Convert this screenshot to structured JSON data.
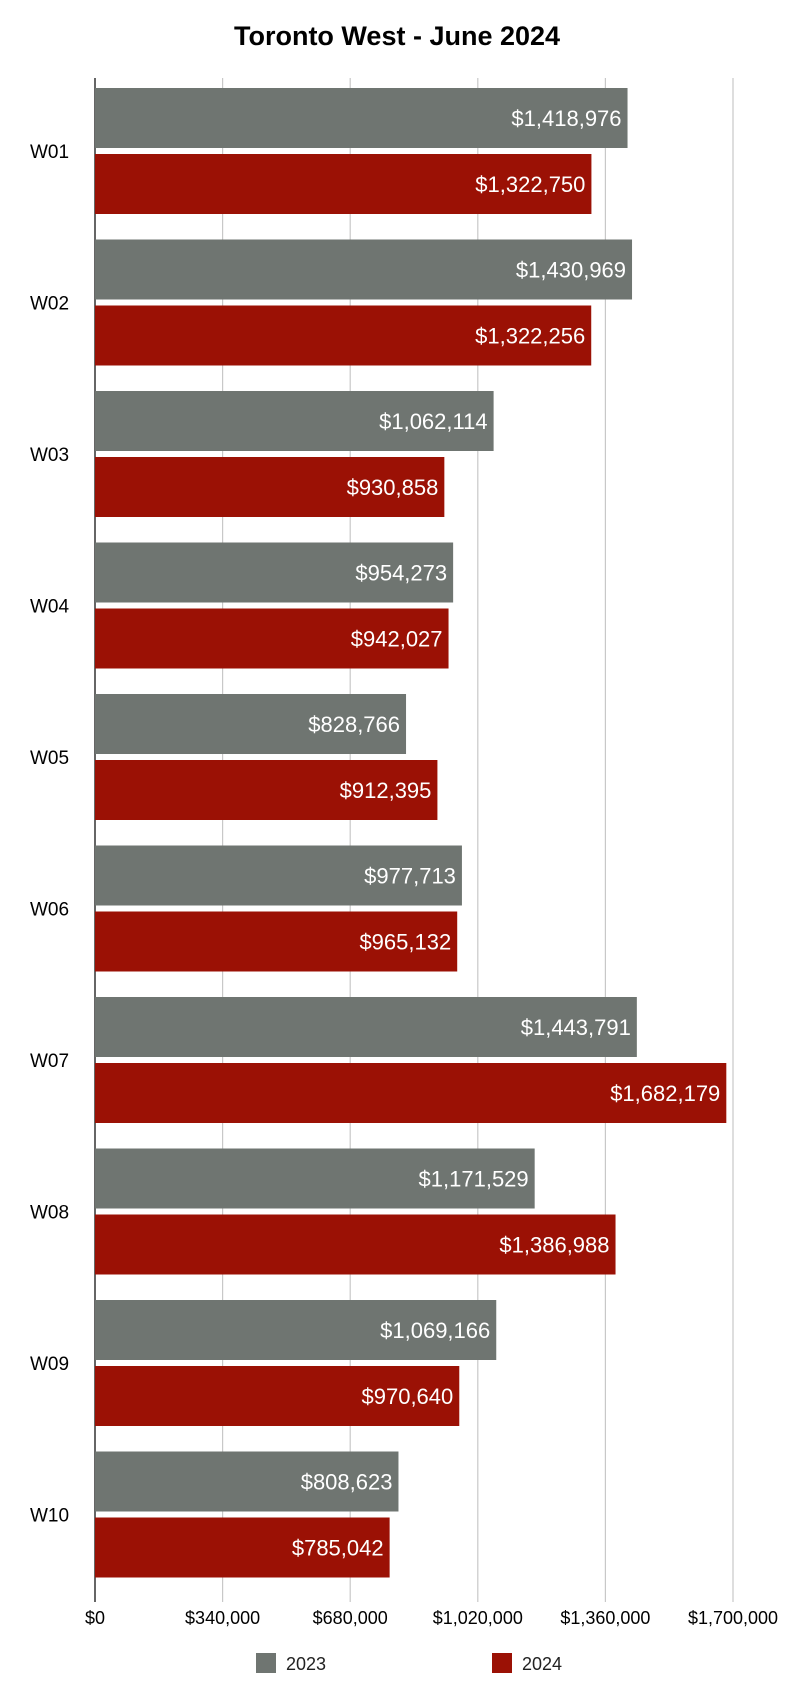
{
  "colors": {
    "series_2023": "#6f7571",
    "series_2024": "#9b1105",
    "grid": "#c8c8c8",
    "axis": "#333333"
  },
  "chart_data": {
    "type": "bar",
    "orientation": "horizontal",
    "title": "Toronto West - June 2024",
    "xlabel": "",
    "ylabel": "",
    "categories": [
      "W01",
      "W02",
      "W03",
      "W04",
      "W05",
      "W06",
      "W07",
      "W08",
      "W09",
      "W10"
    ],
    "series": [
      {
        "name": "2023",
        "values": [
          1418976,
          1430969,
          1062114,
          954273,
          828766,
          977713,
          1443791,
          1171529,
          1069166,
          808623
        ],
        "labels": [
          "$1,418,976",
          "$1,430,969",
          "$1,062,114",
          "$954,273",
          "$828,766",
          "$977,713",
          "$1,443,791",
          "$1,171,529",
          "$1,069,166",
          "$808,623"
        ]
      },
      {
        "name": "2024",
        "values": [
          1322750,
          1322256,
          930858,
          942027,
          912395,
          965132,
          1682179,
          1386988,
          970640,
          785042
        ],
        "labels": [
          "$1,322,750",
          "$1,322,256",
          "$930,858",
          "$942,027",
          "$912,395",
          "$965,132",
          "$1,682,179",
          "$1,386,988",
          "$970,640",
          "$785,042"
        ]
      }
    ],
    "xlim": [
      0,
      1700000
    ],
    "ticks": [
      0,
      340000,
      680000,
      1020000,
      1360000,
      1700000
    ],
    "tick_labels": [
      "$0",
      "$340,000",
      "$680,000",
      "$1,020,000",
      "$1,360,000",
      "$1,700,000"
    ],
    "grid": true,
    "legend": "bottom"
  }
}
